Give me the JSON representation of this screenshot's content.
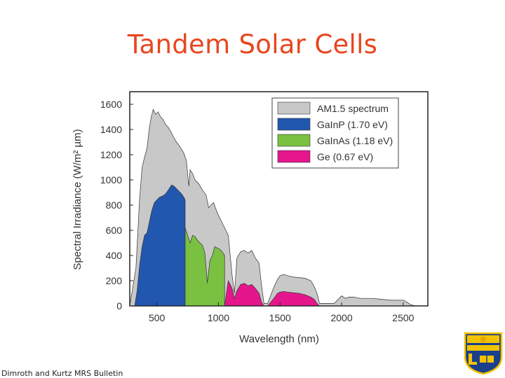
{
  "slide": {
    "title": "Tandem Solar Cells",
    "footer": "Dimroth and Kurtz MRS Bulletin"
  },
  "logo": {
    "name": "university-of-delaware-crest-icon",
    "colors": [
      "#f2c300",
      "#1c3f8c"
    ]
  },
  "chart_data": {
    "type": "area",
    "xlabel": "Wavelength (nm)",
    "ylabel": "Spectral Irradiance (W/m² µm)",
    "xlim": [
      280,
      2700
    ],
    "ylim": [
      0,
      1700
    ],
    "xticks": [
      500,
      1000,
      1500,
      2000,
      2500
    ],
    "yticks": [
      0,
      200,
      400,
      600,
      800,
      1000,
      1200,
      1400,
      1600
    ],
    "grid": false,
    "legend_position": "top-right",
    "series": [
      {
        "name": "AM1.5 spectrum",
        "color": "#c8c8c8",
        "x": [
          280,
          330,
          360,
          380,
          400,
          420,
          440,
          455,
          470,
          490,
          510,
          530,
          550,
          570,
          590,
          610,
          630,
          660,
          690,
          720,
          740,
          760,
          770,
          790,
          810,
          840,
          870,
          900,
          920,
          940,
          960,
          990,
          1020,
          1050,
          1080,
          1110,
          1130,
          1150,
          1180,
          1210,
          1240,
          1270,
          1300,
          1330,
          1350,
          1370,
          1400,
          1450,
          1480,
          1500,
          1530,
          1560,
          1600,
          1650,
          1700,
          1750,
          1780,
          1800,
          1820,
          1850,
          1880,
          1910,
          1940,
          1970,
          2000,
          2030,
          2060,
          2100,
          2150,
          2200,
          2250,
          2300,
          2350,
          2400,
          2450,
          2500,
          2530,
          2560,
          2600
        ],
        "values": [
          0,
          300,
          850,
          1100,
          1180,
          1250,
          1420,
          1500,
          1560,
          1520,
          1540,
          1500,
          1480,
          1440,
          1420,
          1390,
          1350,
          1300,
          1260,
          1210,
          1150,
          950,
          1080,
          1050,
          1000,
          970,
          920,
          880,
          780,
          800,
          820,
          740,
          680,
          620,
          560,
          250,
          100,
          380,
          430,
          440,
          420,
          440,
          380,
          340,
          160,
          20,
          20,
          150,
          210,
          240,
          250,
          240,
          230,
          225,
          220,
          200,
          150,
          100,
          20,
          20,
          20,
          20,
          20,
          50,
          80,
          60,
          70,
          70,
          60,
          60,
          60,
          55,
          50,
          45,
          45,
          45,
          30,
          10,
          0
        ]
      },
      {
        "name": "GaInP (1.70 eV)",
        "color": "#2257b0",
        "x": [
          320,
          340,
          360,
          380,
          400,
          420,
          440,
          460,
          480,
          500,
          520,
          540,
          560,
          580,
          600,
          620,
          640,
          660,
          680,
          700,
          720,
          730
        ],
        "values": [
          0,
          120,
          320,
          470,
          560,
          580,
          670,
          760,
          820,
          840,
          860,
          870,
          880,
          900,
          930,
          960,
          950,
          930,
          910,
          890,
          860,
          840
        ]
      },
      {
        "name": "GaInAs (1.18 eV)",
        "color": "#7ac142",
        "x": [
          730,
          750,
          770,
          790,
          810,
          830,
          850,
          870,
          890,
          910,
          930,
          950,
          970,
          990,
          1010,
          1030,
          1050
        ],
        "values": [
          620,
          560,
          500,
          560,
          550,
          520,
          500,
          480,
          420,
          180,
          360,
          400,
          470,
          460,
          450,
          430,
          400
        ]
      },
      {
        "name": "Ge (0.67 eV)",
        "color": "#e5168c",
        "x": [
          1050,
          1080,
          1110,
          1130,
          1150,
          1180,
          1210,
          1240,
          1270,
          1300,
          1330,
          1350,
          1370,
          1400,
          1450,
          1480,
          1500,
          1530,
          1560,
          1600,
          1650,
          1700,
          1750,
          1780,
          1800,
          1820
        ],
        "values": [
          0,
          200,
          140,
          60,
          120,
          170,
          180,
          160,
          170,
          140,
          100,
          30,
          0,
          0,
          60,
          100,
          110,
          115,
          110,
          105,
          100,
          90,
          70,
          50,
          20,
          0
        ]
      }
    ]
  }
}
